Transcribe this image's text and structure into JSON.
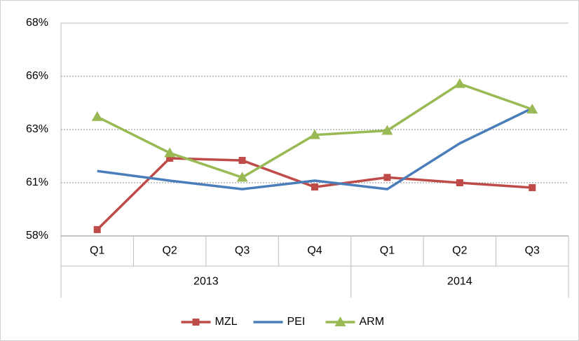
{
  "chart_data": {
    "type": "line",
    "groups": [
      {
        "name": "2013",
        "categories": [
          "Q1",
          "Q2",
          "Q3",
          "Q4"
        ]
      },
      {
        "name": "2014",
        "categories": [
          "Q1",
          "Q2",
          "Q3"
        ]
      }
    ],
    "series": [
      {
        "name": "MZL",
        "color": "#be4b48",
        "marker": "square",
        "values": [
          58.3,
          61.65,
          61.55,
          60.3,
          60.75,
          60.5,
          60.27
        ]
      },
      {
        "name": "PEI",
        "color": "#4a7ebb",
        "marker": "none",
        "values": [
          61.05,
          60.6,
          60.2,
          60.6,
          60.2,
          62.35,
          64.0
        ]
      },
      {
        "name": "ARM",
        "color": "#98b954",
        "marker": "triangle",
        "values": [
          63.6,
          61.9,
          60.75,
          62.75,
          62.95,
          65.15,
          63.95
        ]
      }
    ],
    "ylim": [
      58,
      68
    ],
    "yticks": [
      {
        "value": 58,
        "label": "58%"
      },
      {
        "value": 60.5,
        "label": "61%"
      },
      {
        "value": 63,
        "label": "63%"
      },
      {
        "value": 65.5,
        "label": "66%"
      },
      {
        "value": 68,
        "label": "68%"
      }
    ],
    "grid": true,
    "legend": "bottom"
  }
}
